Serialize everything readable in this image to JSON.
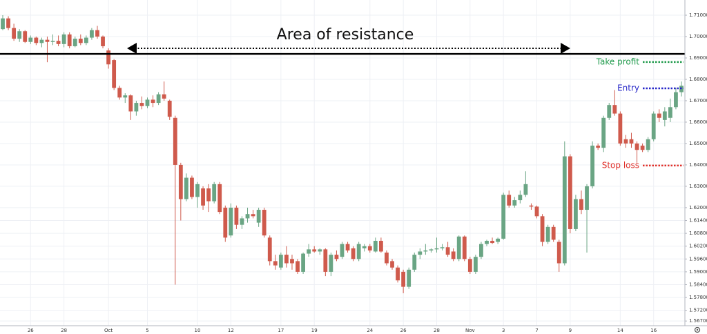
{
  "chart_data": {
    "type": "candlestick",
    "up_color": "#6aa584",
    "down_color": "#cf5a4c",
    "ylim": [
      1.5648,
      1.7171
    ],
    "yticks": [
      {
        "value": 1.71,
        "label": "1.71000"
      },
      {
        "value": 1.7,
        "label": "1.70000"
      },
      {
        "value": 1.69,
        "label": "1.69000"
      },
      {
        "value": 1.68,
        "label": "1.68000"
      },
      {
        "value": 1.67,
        "label": "1.67000"
      },
      {
        "value": 1.66,
        "label": "1.66000"
      },
      {
        "value": 1.65,
        "label": "1.65000"
      },
      {
        "value": 1.64,
        "label": "1.64000"
      },
      {
        "value": 1.63,
        "label": "1.63000"
      },
      {
        "value": 1.62,
        "label": "1.62000"
      },
      {
        "value": 1.614,
        "label": "1.61400"
      },
      {
        "value": 1.608,
        "label": "1.60800"
      },
      {
        "value": 1.602,
        "label": "1.60200"
      },
      {
        "value": 1.596,
        "label": "1.59600"
      },
      {
        "value": 1.59,
        "label": "1.59000"
      },
      {
        "value": 1.584,
        "label": "1.58400"
      },
      {
        "value": 1.578,
        "label": "1.57800"
      },
      {
        "value": 1.572,
        "label": "1.57200"
      },
      {
        "value": 1.567,
        "label": "1.56700"
      }
    ],
    "grid": true,
    "annotation": "Area of resistance",
    "levels": [
      {
        "value": 1.6919,
        "color": "#000000"
      },
      {
        "label": "Take profit",
        "value": 1.6881,
        "color": "#1f9a4b"
      },
      {
        "label": "Entry",
        "value": 1.6758,
        "color": "#2626c8"
      },
      {
        "label": "Stop loss",
        "value": 1.6397,
        "color": "#e0302a"
      }
    ],
    "categories": [
      null,
      null,
      null,
      null,
      null,
      "26",
      null,
      null,
      null,
      null,
      null,
      "28",
      null,
      null,
      null,
      null,
      null,
      null,
      null,
      "Oct",
      null,
      null,
      null,
      null,
      null,
      null,
      "5",
      null,
      null,
      null,
      null,
      null,
      null,
      null,
      null,
      "10",
      null,
      null,
      null,
      null,
      null,
      "12",
      null,
      null,
      null,
      null,
      null,
      null,
      null,
      null,
      "17",
      null,
      null,
      null,
      null,
      null,
      "19",
      null,
      null,
      null,
      null,
      null,
      null,
      null,
      null,
      null,
      "24",
      null,
      null,
      null,
      null,
      null,
      "26",
      null,
      null,
      null,
      null,
      null,
      "28",
      null,
      null,
      null,
      null,
      null,
      "Nov",
      null,
      null,
      null,
      null,
      null,
      "3",
      null,
      null,
      null,
      null,
      null,
      "7",
      null,
      null,
      null,
      null,
      null,
      "9",
      null,
      null,
      null,
      null,
      null,
      null,
      null,
      null,
      "14",
      null,
      null,
      null,
      null,
      null,
      "16",
      null,
      null,
      null,
      null,
      null
    ],
    "open": [
      1.7035,
      1.7085,
      1.704,
      1.699,
      1.7025,
      1.6975,
      1.6995,
      1.697,
      1.6985,
      1.6975,
      1.698,
      1.6965,
      1.701,
      1.6955,
      1.699,
      1.697,
      1.6995,
      1.703,
      1.7,
      1.6935,
      1.689,
      1.676,
      1.6715,
      1.6725,
      1.665,
      1.669,
      1.6675,
      1.6705,
      1.669,
      1.673,
      1.67,
      1.662,
      1.64,
      1.624,
      1.634,
      1.625,
      1.629,
      1.629,
      1.623,
      1.631,
      1.62,
      1.607,
      1.62,
      1.612,
      1.615,
      1.617,
      1.613,
      1.619,
      1.606,
      1.595,
      1.592,
      1.598,
      1.596,
      1.595,
      1.59,
      1.5985,
      1.6005,
      1.5995,
      1.6005,
      1.59,
      1.598,
      1.597,
      1.603,
      1.601,
      1.596,
      1.601,
      1.602,
      1.5995,
      1.6045,
      1.599,
      1.595,
      1.592,
      1.59,
      1.583,
      1.591,
      1.598,
      1.5995,
      1.6,
      1.6005,
      1.601,
      1.6015,
      1.5995,
      1.596,
      1.6065,
      1.596,
      1.59,
      1.597,
      1.603,
      1.6045,
      1.604,
      1.6055,
      1.626,
      1.621,
      1.6235,
      1.626,
      1.621,
      1.6205,
      1.616,
      1.604,
      1.611,
      1.604,
      1.594,
      1.644,
      1.61,
      1.624,
      1.619,
      1.63,
      1.649,
      1.648,
      1.662,
      1.668,
      1.664,
      1.652,
      1.652,
      1.65,
      1.649,
      1.647,
      1.652,
      1.664,
      1.661,
      1.662,
      1.667,
      1.674
    ],
    "high": [
      1.71,
      1.7095,
      1.706,
      1.7035,
      1.703,
      1.7005,
      1.7,
      1.6995,
      1.7,
      1.701,
      1.7005,
      1.702,
      1.702,
      1.7,
      1.701,
      1.7005,
      1.704,
      1.705,
      1.7005,
      1.6945,
      1.6895,
      1.677,
      1.6735,
      1.673,
      1.67,
      1.672,
      1.6715,
      1.6725,
      1.674,
      1.679,
      1.6705,
      1.663,
      1.641,
      1.636,
      1.635,
      1.632,
      1.63,
      1.631,
      1.632,
      1.632,
      1.621,
      1.622,
      1.621,
      1.616,
      1.62,
      1.619,
      1.62,
      1.62,
      1.607,
      1.598,
      1.599,
      1.602,
      1.598,
      1.596,
      1.599,
      1.603,
      1.602,
      1.601,
      1.601,
      1.599,
      1.6,
      1.604,
      1.604,
      1.602,
      1.604,
      1.603,
      1.603,
      1.606,
      1.606,
      1.6,
      1.596,
      1.593,
      1.591,
      1.592,
      1.599,
      1.601,
      1.603,
      1.601,
      1.606,
      1.603,
      1.604,
      1.601,
      1.607,
      1.607,
      1.597,
      1.598,
      1.604,
      1.605,
      1.606,
      1.606,
      1.627,
      1.628,
      1.625,
      1.628,
      1.637,
      1.622,
      1.621,
      1.617,
      1.612,
      1.612,
      1.605,
      1.651,
      1.645,
      1.626,
      1.628,
      1.631,
      1.651,
      1.65,
      1.663,
      1.669,
      1.675,
      1.665,
      1.654,
      1.655,
      1.651,
      1.65,
      1.653,
      1.665,
      1.666,
      1.667,
      1.671,
      1.676,
      1.679
    ],
    "low": [
      1.703,
      1.703,
      1.698,
      1.6975,
      1.697,
      1.6965,
      1.696,
      1.695,
      1.688,
      1.696,
      1.6955,
      1.695,
      1.6945,
      1.695,
      1.696,
      1.696,
      1.6985,
      1.699,
      1.6945,
      1.685,
      1.675,
      1.6705,
      1.669,
      1.661,
      1.663,
      1.666,
      1.6665,
      1.667,
      1.668,
      1.67,
      1.661,
      1.584,
      1.614,
      1.623,
      1.624,
      1.62,
      1.619,
      1.618,
      1.622,
      1.617,
      1.604,
      1.606,
      1.61,
      1.61,
      1.613,
      1.615,
      1.611,
      1.606,
      1.593,
      1.591,
      1.591,
      1.592,
      1.591,
      1.589,
      1.589,
      1.597,
      1.599,
      1.598,
      1.588,
      1.588,
      1.595,
      1.596,
      1.599,
      1.595,
      1.595,
      1.5995,
      1.599,
      1.599,
      1.599,
      1.593,
      1.591,
      1.585,
      1.58,
      1.582,
      1.59,
      1.596,
      1.598,
      1.599,
      1.599,
      1.6,
      1.597,
      1.595,
      1.595,
      1.595,
      1.589,
      1.589,
      1.596,
      1.602,
      1.603,
      1.603,
      1.605,
      1.62,
      1.62,
      1.622,
      1.625,
      1.619,
      1.615,
      1.602,
      1.603,
      1.604,
      1.59,
      1.593,
      1.608,
      1.609,
      1.617,
      1.599,
      1.629,
      1.647,
      1.646,
      1.661,
      1.663,
      1.649,
      1.648,
      1.648,
      1.641,
      1.646,
      1.646,
      1.651,
      1.66,
      1.658,
      1.66,
      1.666,
      1.672
    ],
    "close": [
      1.7085,
      1.704,
      1.699,
      1.7025,
      1.6975,
      1.6995,
      1.697,
      1.6985,
      1.6975,
      1.698,
      1.6965,
      1.701,
      1.6955,
      1.699,
      1.697,
      1.6995,
      1.703,
      1.7,
      1.6955,
      1.687,
      1.676,
      1.6715,
      1.6725,
      1.665,
      1.669,
      1.6675,
      1.6705,
      1.669,
      1.673,
      1.671,
      1.6625,
      1.64,
      1.624,
      1.634,
      1.625,
      1.631,
      1.621,
      1.623,
      1.631,
      1.618,
      1.606,
      1.62,
      1.612,
      1.615,
      1.617,
      1.616,
      1.619,
      1.607,
      1.595,
      1.593,
      1.598,
      1.594,
      1.594,
      1.59,
      1.5985,
      1.6005,
      1.5995,
      1.6005,
      1.59,
      1.598,
      1.596,
      1.603,
      1.6,
      1.596,
      1.603,
      1.602,
      1.6,
      1.6045,
      1.5995,
      1.594,
      1.592,
      1.586,
      1.583,
      1.591,
      1.598,
      1.5995,
      1.6,
      1.6005,
      1.601,
      1.6015,
      1.598,
      1.596,
      1.6065,
      1.596,
      1.59,
      1.597,
      1.603,
      1.6045,
      1.6035,
      1.6055,
      1.626,
      1.621,
      1.6235,
      1.626,
      1.631,
      1.6205,
      1.616,
      1.604,
      1.611,
      1.605,
      1.594,
      1.644,
      1.61,
      1.624,
      1.619,
      1.63,
      1.649,
      1.648,
      1.662,
      1.668,
      1.664,
      1.65,
      1.65,
      1.65,
      1.647,
      1.647,
      1.652,
      1.664,
      1.662,
      1.665,
      1.667,
      1.674,
      1.677
    ]
  }
}
